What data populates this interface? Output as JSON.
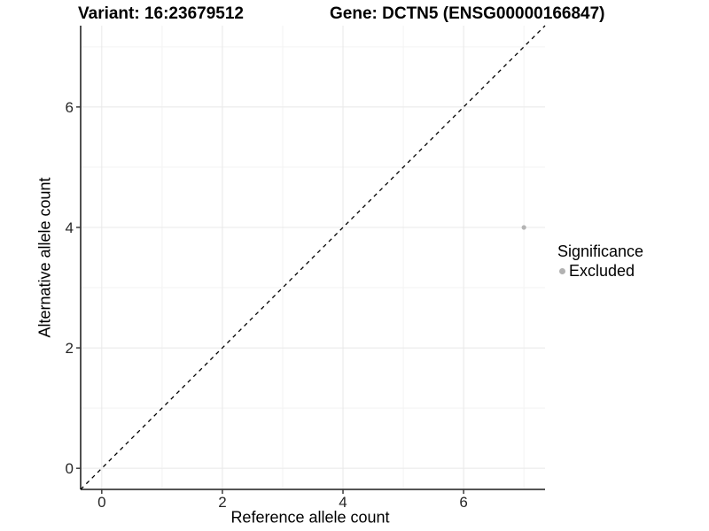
{
  "chart_data": {
    "type": "scatter",
    "title_left": "Variant: 16:23679512",
    "title_right": "Gene: DCTN5 (ENSG00000166847)",
    "xlabel": "Reference allele count",
    "ylabel": "Alternative allele count",
    "xlim": [
      -0.35,
      7.35
    ],
    "ylim": [
      -0.35,
      7.35
    ],
    "x_ticks": [
      0,
      2,
      4,
      6
    ],
    "y_ticks": [
      0,
      2,
      4,
      6
    ],
    "x_minor_ticks": [
      1,
      3,
      5,
      7
    ],
    "y_minor_ticks": [
      1,
      3,
      5,
      7
    ],
    "grid": true,
    "points": [
      {
        "x": 7,
        "y": 4,
        "significance": "Excluded"
      }
    ],
    "identity_line": {
      "style": "dashed",
      "from": [
        -0.35,
        -0.35
      ],
      "to": [
        7.35,
        7.35
      ]
    },
    "legend": {
      "title": "Significance",
      "position": "right",
      "items": [
        {
          "label": "Excluded",
          "marker": "circle",
          "color": "#b2b2b2"
        }
      ]
    }
  },
  "colors": {
    "background": "#ffffff",
    "grid_major": "#e8e8e8",
    "grid_minor": "#f3f3f3",
    "axis_line": "#3c3c3c",
    "tick_mark": "#3c3c3c",
    "tick_label": "#262626",
    "identity_line": "#000000",
    "point": "#b4b4b4",
    "title": "#000000"
  }
}
